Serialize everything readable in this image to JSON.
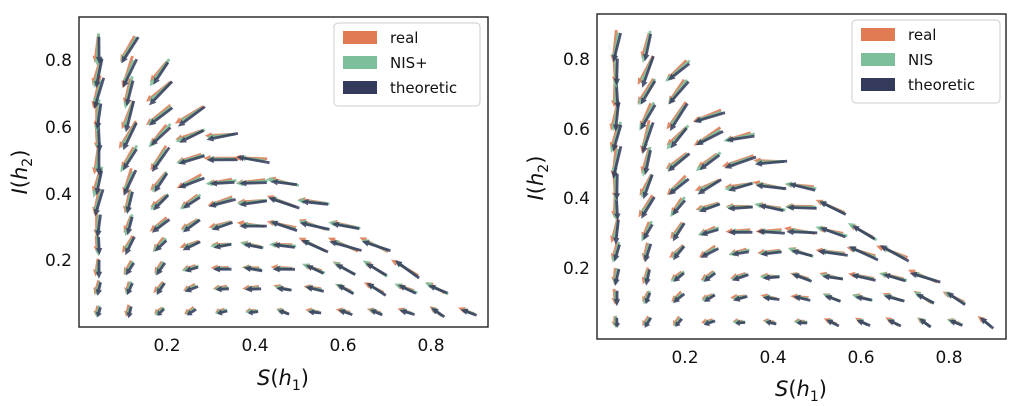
{
  "colors": {
    "real": "#e07b54",
    "nis": "#7cbf9a",
    "theoretic": "#333a5c"
  },
  "chart_data": [
    {
      "type": "quiver",
      "xlabel": "S(h1)",
      "ylabel": "I(h2)",
      "xlim": [
        0.0,
        0.93
      ],
      "ylim": [
        0.03,
        0.92
      ],
      "xticks": [
        "0.2",
        "0.4",
        "0.6",
        "0.8"
      ],
      "yticks": [
        "0.2",
        "0.4",
        "0.6",
        "0.8"
      ],
      "legend_position": "top-right",
      "series": [
        {
          "name": "real",
          "color": "#e07b54"
        },
        {
          "name": "NIS+",
          "color": "#7cbf9a"
        },
        {
          "name": "theoretic",
          "color": "#333a5c"
        }
      ]
    },
    {
      "type": "quiver",
      "xlabel": "S(h1)",
      "ylabel": "I(h2)",
      "xlim": [
        0.0,
        0.93
      ],
      "ylim": [
        0.03,
        0.92
      ],
      "xticks": [
        "0.2",
        "0.4",
        "0.6",
        "0.8"
      ],
      "yticks": [
        "0.2",
        "0.4",
        "0.6",
        "0.8"
      ],
      "legend_position": "top-right",
      "series": [
        {
          "name": "real",
          "color": "#e07b54"
        },
        {
          "name": "NIS",
          "color": "#7cbf9a"
        },
        {
          "name": "theoretic",
          "color": "#333a5c"
        }
      ]
    }
  ]
}
